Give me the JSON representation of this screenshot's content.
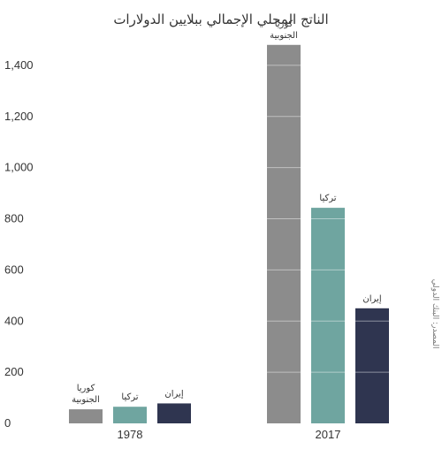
{
  "chart_data": {
    "type": "bar",
    "title": "الناتج المحلي الإجمالي ببلايين الدولارات",
    "categories": [
      "1978",
      "2017"
    ],
    "series": [
      {
        "name": "كوريا الجنوبية",
        "label_lines": [
          "كوريا",
          "الجنوبية"
        ],
        "color": "#8c8c8c",
        "values": [
          55,
          1480
        ]
      },
      {
        "name": "تركيا",
        "label_lines": [
          "تركيا"
        ],
        "color": "#6fa5a0",
        "values": [
          65,
          843
        ]
      },
      {
        "name": "إيران",
        "label_lines": [
          "إيران"
        ],
        "color": "#2f3550",
        "values": [
          78,
          450
        ]
      }
    ],
    "yticks": [
      0,
      200,
      400,
      600,
      800,
      1000,
      1200,
      1400
    ],
    "ytick_labels": [
      "0",
      "200",
      "400",
      "600",
      "800",
      "1,000",
      "1,200",
      "1,400"
    ],
    "ylim": [
      0,
      1500
    ],
    "grid": false,
    "source": "المصدر: البنك الدولي"
  }
}
